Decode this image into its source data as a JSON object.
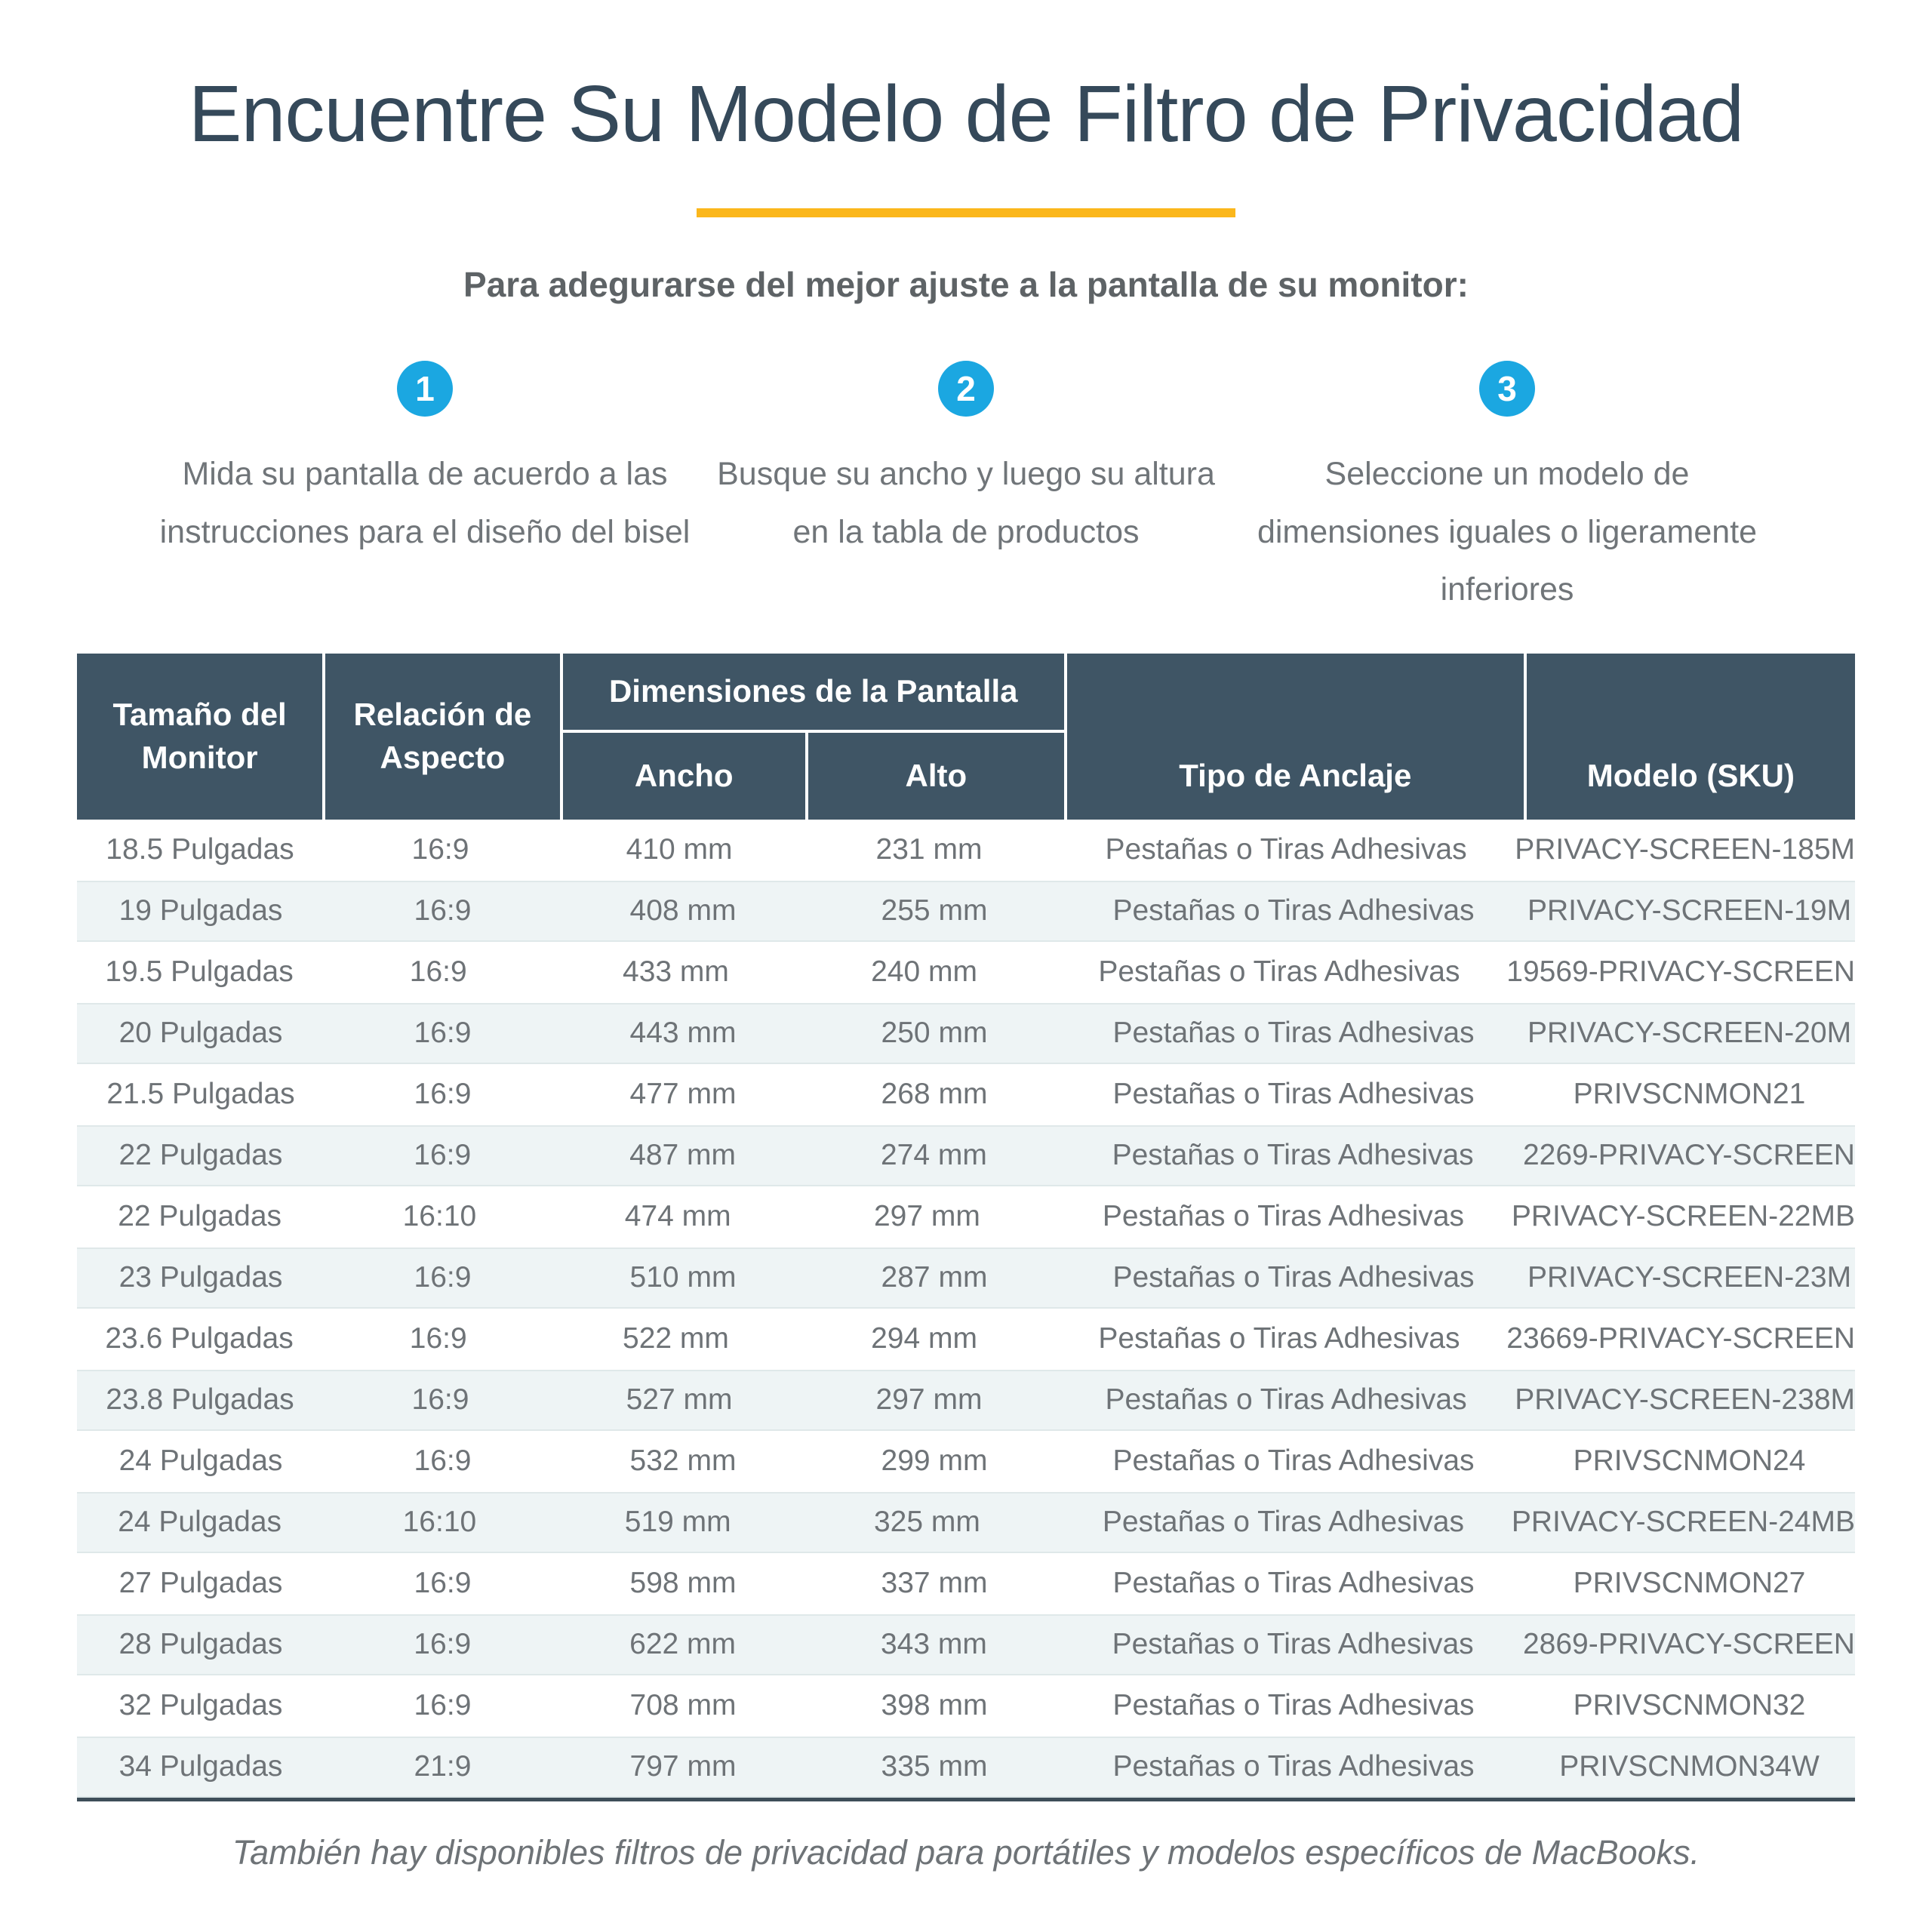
{
  "page": {
    "title": "Encuentre Su Modelo de Filtro de Privacidad",
    "subtitle": "Para adegurarse del mejor ajuste a la pantalla de su monitor:",
    "footer_note": "También hay disponibles filtros de privacidad para portátiles y modelos específicos de MacBooks."
  },
  "colors": {
    "accent_yellow": "#FBB71C",
    "step_badge_blue": "#1BA7E1",
    "table_header_bg": "#3F5565",
    "row_stripe_bg": "#EEF4F5",
    "title_text": "#35495A",
    "body_text": "#6E7377",
    "table_bottom_border": "#3E4E59"
  },
  "steps": [
    {
      "number": "1",
      "text": "Mida su pantalla de acuerdo a las instrucciones para el diseño del bisel"
    },
    {
      "number": "2",
      "text": "Busque su ancho y luego su altura en la tabla de productos"
    },
    {
      "number": "3",
      "text": "Seleccione un modelo de dimensiones iguales o ligeramente inferiores"
    }
  ],
  "table": {
    "headers": {
      "monitor_size": "Tamaño del Monitor",
      "aspect_ratio": "Relación de Aspecto",
      "dimensions_group": "Dimensiones de la Pantalla",
      "width": "Ancho",
      "height": "Alto",
      "anchor_type": "Tipo de Anclaje",
      "model_sku": "Modelo (SKU)"
    },
    "column_keys": [
      "monitor-size",
      "aspect-ratio",
      "width",
      "height",
      "anchor-type",
      "model-sku"
    ],
    "rows": [
      [
        "18.5 Pulgadas",
        "16:9",
        "410 mm",
        "231 mm",
        "Pestañas o Tiras Adhesivas",
        "PRIVACY-SCREEN-185M"
      ],
      [
        "19 Pulgadas",
        "16:9",
        "408 mm",
        "255 mm",
        "Pestañas o Tiras Adhesivas",
        "PRIVACY-SCREEN-19M"
      ],
      [
        "19.5 Pulgadas",
        "16:9",
        "433 mm",
        "240 mm",
        "Pestañas o Tiras Adhesivas",
        "19569-PRIVACY-SCREEN"
      ],
      [
        "20 Pulgadas",
        "16:9",
        "443 mm",
        "250 mm",
        "Pestañas o Tiras Adhesivas",
        "PRIVACY-SCREEN-20M"
      ],
      [
        "21.5 Pulgadas",
        "16:9",
        "477 mm",
        "268 mm",
        "Pestañas o Tiras Adhesivas",
        "PRIVSCNMON21"
      ],
      [
        "22 Pulgadas",
        "16:9",
        "487 mm",
        "274 mm",
        "Pestañas o Tiras Adhesivas",
        "2269-PRIVACY-SCREEN"
      ],
      [
        "22 Pulgadas",
        "16:10",
        "474 mm",
        "297 mm",
        "Pestañas o Tiras Adhesivas",
        "PRIVACY-SCREEN-22MB"
      ],
      [
        "23 Pulgadas",
        "16:9",
        "510 mm",
        "287 mm",
        "Pestañas o Tiras Adhesivas",
        "PRIVACY-SCREEN-23M"
      ],
      [
        "23.6 Pulgadas",
        "16:9",
        "522 mm",
        "294 mm",
        "Pestañas o Tiras Adhesivas",
        "23669-PRIVACY-SCREEN"
      ],
      [
        "23.8 Pulgadas",
        "16:9",
        "527 mm",
        "297 mm",
        "Pestañas o Tiras Adhesivas",
        "PRIVACY-SCREEN-238M"
      ],
      [
        "24 Pulgadas",
        "16:9",
        "532 mm",
        "299 mm",
        "Pestañas o Tiras Adhesivas",
        "PRIVSCNMON24"
      ],
      [
        "24 Pulgadas",
        "16:10",
        "519 mm",
        "325 mm",
        "Pestañas o Tiras Adhesivas",
        "PRIVACY-SCREEN-24MB"
      ],
      [
        "27 Pulgadas",
        "16:9",
        "598 mm",
        "337 mm",
        "Pestañas o Tiras Adhesivas",
        "PRIVSCNMON27"
      ],
      [
        "28 Pulgadas",
        "16:9",
        "622 mm",
        "343 mm",
        "Pestañas o Tiras Adhesivas",
        "2869-PRIVACY-SCREEN"
      ],
      [
        "32 Pulgadas",
        "16:9",
        "708 mm",
        "398 mm",
        "Pestañas o Tiras Adhesivas",
        "PRIVSCNMON32"
      ],
      [
        "34 Pulgadas",
        "21:9",
        "797 mm",
        "335 mm",
        "Pestañas o Tiras Adhesivas",
        "PRIVSCNMON34W"
      ]
    ]
  }
}
